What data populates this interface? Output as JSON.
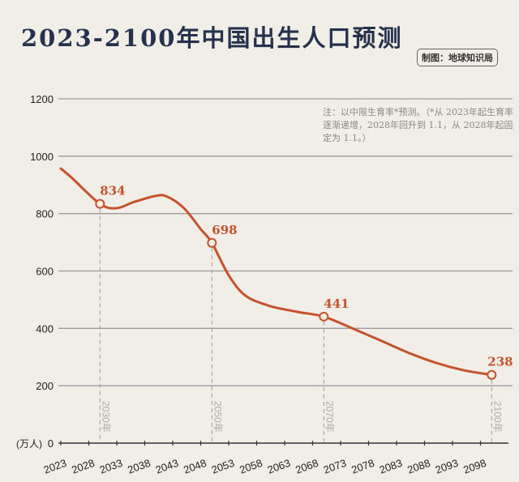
{
  "header": {
    "title": "2023-2100年中国出生人口预测",
    "credit": "制图：地球知识局"
  },
  "note": "注：以中限生育率*预测。（*从 2023年起生育率逐渐递增，2028年回升到 1.1，从 2028年起固定为 1.1。）",
  "colors": {
    "line": "#c4532c",
    "title": "#26324d",
    "background": "#f1eee7",
    "grid": "#9a9a9a"
  },
  "chart_data": {
    "type": "line",
    "title": "2023-2100年中国出生人口预测",
    "ylabel": "(万人)",
    "ylim": [
      0,
      1200
    ],
    "yticks": [
      0,
      200,
      400,
      600,
      800,
      1000,
      1200
    ],
    "xlim": [
      2023,
      2101
    ],
    "xticks": [
      2023,
      2028,
      2033,
      2038,
      2043,
      2048,
      2053,
      2058,
      2063,
      2068,
      2073,
      2078,
      2083,
      2088,
      2093,
      2098
    ],
    "grid": true,
    "series": [
      {
        "x": [
          2023,
          2025,
          2030,
          2033,
          2036,
          2040,
          2042,
          2045,
          2048,
          2050,
          2053,
          2056,
          2060,
          2063,
          2066,
          2070,
          2075,
          2080,
          2085,
          2090,
          2095,
          2100
        ],
        "y": [
          957,
          924,
          834,
          819,
          840,
          862,
          859,
          819,
          746,
          698,
          585,
          514,
          480,
          466,
          455,
          441,
          401,
          359,
          316,
          280,
          254,
          238
        ]
      }
    ],
    "annotations": [
      {
        "x": 2030,
        "y": 834,
        "label": "834",
        "marker": "2030年"
      },
      {
        "x": 2050,
        "y": 698,
        "label": "698",
        "marker": "2050年"
      },
      {
        "x": 2070,
        "y": 441,
        "label": "441",
        "marker": "2070年"
      },
      {
        "x": 2100,
        "y": 238,
        "label": "238",
        "marker": "2100年"
      }
    ]
  }
}
